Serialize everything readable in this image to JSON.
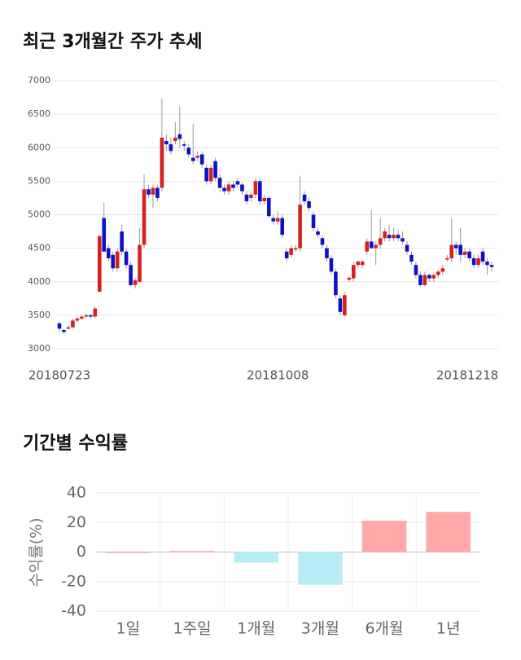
{
  "chart_data": [
    {
      "type": "candlestick",
      "title": "최근 3개월간 주가 추세",
      "up_color": "#d62020",
      "down_color": "#1010c8",
      "grid": true,
      "ylim": [
        3000,
        7000
      ],
      "yticks": [
        3000,
        3500,
        4000,
        4500,
        5000,
        5500,
        6000,
        6500,
        7000
      ],
      "categories": [
        "20180723",
        null,
        null,
        null,
        null,
        null,
        null,
        null,
        null,
        null,
        null,
        null,
        null,
        null,
        null,
        null,
        null,
        null,
        null,
        null,
        null,
        null,
        null,
        null,
        null,
        null,
        null,
        null,
        null,
        null,
        null,
        null,
        null,
        null,
        null,
        null,
        null,
        null,
        null,
        null,
        null,
        null,
        null,
        null,
        null,
        null,
        null,
        null,
        null,
        "20181008",
        null,
        null,
        null,
        null,
        null,
        null,
        null,
        null,
        null,
        null,
        null,
        null,
        null,
        null,
        null,
        null,
        null,
        null,
        null,
        null,
        null,
        null,
        null,
        null,
        null,
        null,
        null,
        null,
        null,
        null,
        null,
        null,
        null,
        null,
        null,
        null,
        null,
        null,
        null,
        null,
        null,
        null,
        null,
        null,
        "20181218",
        null,
        null,
        null
      ],
      "open": [
        3380,
        3280,
        3300,
        3320,
        3420,
        3450,
        3480,
        3500,
        3480,
        3850,
        4950,
        4500,
        4400,
        4200,
        4750,
        4450,
        4250,
        3950,
        4000,
        4550,
        5380,
        5300,
        5400,
        5400,
        6100,
        6050,
        6100,
        6200,
        6050,
        6000,
        5850,
        5850,
        5900,
        5700,
        5500,
        5800,
        5550,
        5400,
        5350,
        5450,
        5500,
        5450,
        5300,
        5250,
        5300,
        5500,
        5200,
        5250,
        4950,
        4900,
        4950,
        4450,
        4400,
        4480,
        4500,
        5300,
        5200,
        5000,
        4750,
        4650,
        4500,
        4350,
        4150,
        3750,
        3500,
        4030,
        4050,
        4250,
        4250,
        4450,
        4600,
        4500,
        4550,
        4650,
        4700,
        4650,
        4700,
        4650,
        4550,
        4400,
        4250,
        4100,
        3950,
        4100,
        4050,
        4100,
        4150,
        4330,
        4350,
        4550,
        4550,
        4400,
        4450,
        4350,
        4250,
        4450,
        4300,
        4250
      ],
      "high": [
        3400,
        3300,
        3350,
        3450,
        3480,
        3500,
        3520,
        3520,
        3630,
        4700,
        5180,
        4550,
        4450,
        4500,
        4850,
        4500,
        4300,
        4050,
        4800,
        5600,
        5450,
        5450,
        5450,
        6730,
        6200,
        6150,
        6380,
        6620,
        6100,
        6050,
        6350,
        5950,
        5950,
        5750,
        5750,
        5850,
        5600,
        5450,
        5500,
        5500,
        5550,
        5480,
        5350,
        5350,
        5550,
        5550,
        5300,
        5280,
        5000,
        5050,
        5000,
        4500,
        4550,
        4550,
        5580,
        5350,
        5250,
        5050,
        4800,
        4700,
        4550,
        4400,
        4200,
        3800,
        3850,
        4080,
        4300,
        4320,
        4320,
        4650,
        5080,
        4600,
        4950,
        4800,
        4850,
        4800,
        4780,
        4750,
        4600,
        4450,
        4300,
        4150,
        4150,
        4120,
        4120,
        4180,
        4250,
        4400,
        4950,
        4600,
        4800,
        4500,
        4500,
        4400,
        4400,
        4500,
        4350,
        4300
      ],
      "low": [
        3250,
        3220,
        3280,
        3300,
        3400,
        3430,
        3450,
        3450,
        3460,
        3850,
        4450,
        4300,
        4150,
        4150,
        4400,
        4200,
        3930,
        3900,
        3980,
        4500,
        5250,
        5100,
        5200,
        5350,
        5950,
        5900,
        6050,
        6000,
        5950,
        5850,
        5750,
        5800,
        5700,
        5450,
        5450,
        5500,
        5350,
        5300,
        5300,
        5350,
        5400,
        5300,
        5150,
        5200,
        5250,
        5150,
        5150,
        4950,
        4850,
        4850,
        4650,
        4300,
        4350,
        4450,
        4450,
        5150,
        5050,
        4750,
        4650,
        4500,
        4300,
        4100,
        3750,
        3500,
        3480,
        4000,
        4000,
        4200,
        4200,
        4400,
        4500,
        4250,
        4500,
        4600,
        4600,
        4600,
        4600,
        4550,
        4400,
        4250,
        4050,
        3930,
        3930,
        4000,
        4000,
        4050,
        4100,
        4300,
        4300,
        4400,
        4300,
        4350,
        4300,
        4200,
        4200,
        4250,
        4100,
        4150
      ],
      "close": [
        3300,
        3250,
        3320,
        3420,
        3450,
        3480,
        3500,
        3480,
        3600,
        4680,
        4450,
        4350,
        4200,
        4450,
        4450,
        4250,
        3950,
        4020,
        4550,
        5380,
        5300,
        5400,
        5250,
        6150,
        6050,
        5950,
        6150,
        6130,
        6030,
        5900,
        5800,
        5880,
        5750,
        5500,
        5700,
        5550,
        5400,
        5350,
        5450,
        5400,
        5450,
        5350,
        5200,
        5300,
        5500,
        5200,
        5250,
        4980,
        4900,
        4950,
        4700,
        4350,
        4500,
        4500,
        5150,
        5200,
        5100,
        4800,
        4700,
        4550,
        4350,
        4150,
        3800,
        3550,
        3800,
        4060,
        4250,
        4300,
        4300,
        4600,
        4500,
        4550,
        4650,
        4750,
        4650,
        4700,
        4650,
        4600,
        4450,
        4300,
        4100,
        3950,
        4100,
        4050,
        4100,
        4150,
        4200,
        4350,
        4550,
        4500,
        4400,
        4450,
        4350,
        4250,
        4350,
        4300,
        4250,
        4220
      ]
    },
    {
      "type": "bar",
      "title": "기간별 수익률",
      "ylabel": "수익률(%)",
      "grid": true,
      "categories": [
        "1일",
        "1주일",
        "1개월",
        "3개월",
        "6개월",
        "1년"
      ],
      "values": [
        0,
        0.5,
        -7,
        -22,
        21,
        27
      ],
      "colors": [
        "#ffa5a5",
        "#ffa5a5",
        "#b3ebf5",
        "#b3ebf5",
        "#ffa5a5",
        "#ffa5a5"
      ],
      "ylim": [
        -40,
        40
      ],
      "yticks": [
        -40,
        -20,
        0,
        20,
        40
      ]
    }
  ]
}
